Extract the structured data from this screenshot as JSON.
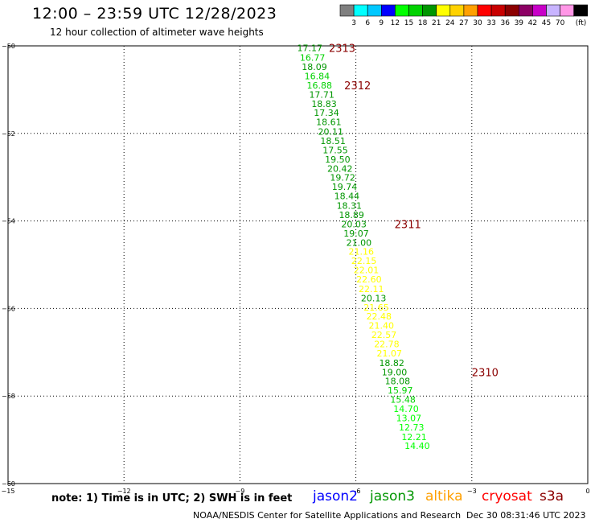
{
  "header": {
    "title": "12:00 – 23:59 UTC 12/28/2023",
    "subtitle": "12 hour collection of altimeter wave heights"
  },
  "colorbar": {
    "unit": "(ft)",
    "bins": [
      {
        "label": "",
        "color": "#7f7f7f"
      },
      {
        "label": "3",
        "color": "#00ffff"
      },
      {
        "label": "6",
        "color": "#00c8ff"
      },
      {
        "label": "9",
        "color": "#0000ff"
      },
      {
        "label": "12",
        "color": "#00ff00"
      },
      {
        "label": "15",
        "color": "#00d200"
      },
      {
        "label": "18",
        "color": "#009600"
      },
      {
        "label": "21",
        "color": "#ffff00"
      },
      {
        "label": "24",
        "color": "#ffd200"
      },
      {
        "label": "27",
        "color": "#ffa000"
      },
      {
        "label": "30",
        "color": "#ff0000"
      },
      {
        "label": "33",
        "color": "#c80000"
      },
      {
        "label": "36",
        "color": "#8b0000"
      },
      {
        "label": "39",
        "color": "#8c0064"
      },
      {
        "label": "42",
        "color": "#c800c8"
      },
      {
        "label": "45",
        "color": "#c8b4ff"
      },
      {
        "label": "70",
        "color": "#ff96e6"
      },
      {
        "label": "",
        "color": "#000000"
      }
    ]
  },
  "chart_data": {
    "type": "scatter",
    "xlim": [
      -15,
      0
    ],
    "ylim": [
      -60,
      -50
    ],
    "x_ticks": [
      -15,
      -12,
      -9,
      -6,
      -3,
      0
    ],
    "y_ticks": [
      -50,
      -52,
      -54,
      -56,
      -58,
      -60
    ],
    "grid": true,
    "points": [
      {
        "x": -7.52,
        "y": -50.05,
        "value": "17.17",
        "color": "#009600"
      },
      {
        "x": -7.45,
        "y": -50.27,
        "value": "16.77",
        "color": "#00d200"
      },
      {
        "x": -7.4,
        "y": -50.48,
        "value": "18.09",
        "color": "#009600"
      },
      {
        "x": -7.33,
        "y": -50.69,
        "value": "16.84",
        "color": "#00d200"
      },
      {
        "x": -7.27,
        "y": -50.9,
        "value": "16.88",
        "color": "#00d200"
      },
      {
        "x": -7.21,
        "y": -51.11,
        "value": "17.71",
        "color": "#009600"
      },
      {
        "x": -7.15,
        "y": -51.32,
        "value": "18.83",
        "color": "#009600"
      },
      {
        "x": -7.09,
        "y": -51.53,
        "value": "17.34",
        "color": "#009600"
      },
      {
        "x": -7.03,
        "y": -51.74,
        "value": "18.61",
        "color": "#009600"
      },
      {
        "x": -6.98,
        "y": -51.96,
        "value": "20.11",
        "color": "#009600"
      },
      {
        "x": -6.92,
        "y": -52.17,
        "value": "18.51",
        "color": "#009600"
      },
      {
        "x": -6.86,
        "y": -52.38,
        "value": "17.55",
        "color": "#009600"
      },
      {
        "x": -6.8,
        "y": -52.59,
        "value": "19.50",
        "color": "#009600"
      },
      {
        "x": -6.74,
        "y": -52.8,
        "value": "20.42",
        "color": "#009600"
      },
      {
        "x": -6.67,
        "y": -53.01,
        "value": "19.72",
        "color": "#009600"
      },
      {
        "x": -6.62,
        "y": -53.22,
        "value": "19.74",
        "color": "#009600"
      },
      {
        "x": -6.56,
        "y": -53.43,
        "value": "18.44",
        "color": "#009600"
      },
      {
        "x": -6.5,
        "y": -53.65,
        "value": "18.31",
        "color": "#009600"
      },
      {
        "x": -6.44,
        "y": -53.86,
        "value": "18.89",
        "color": "#009600"
      },
      {
        "x": -6.38,
        "y": -54.07,
        "value": "20.03",
        "color": "#009600"
      },
      {
        "x": -6.32,
        "y": -54.28,
        "value": "19.07",
        "color": "#009600"
      },
      {
        "x": -6.25,
        "y": -54.49,
        "value": "21.00",
        "color": "#009600"
      },
      {
        "x": -6.19,
        "y": -54.7,
        "value": "21.16",
        "color": "#ffff00"
      },
      {
        "x": -6.12,
        "y": -54.91,
        "value": "22.15",
        "color": "#ffff00"
      },
      {
        "x": -6.06,
        "y": -55.12,
        "value": "22.01",
        "color": "#ffff00"
      },
      {
        "x": -5.99,
        "y": -55.33,
        "value": "22.60",
        "color": "#ffff00"
      },
      {
        "x": -5.93,
        "y": -55.55,
        "value": "22.11",
        "color": "#ffff00"
      },
      {
        "x": -5.87,
        "y": -55.76,
        "value": "20.13",
        "color": "#009600"
      },
      {
        "x": -5.8,
        "y": -55.97,
        "value": "21.65",
        "color": "#ffff00"
      },
      {
        "x": -5.73,
        "y": -56.18,
        "value": "22.48",
        "color": "#ffff00"
      },
      {
        "x": -5.67,
        "y": -56.39,
        "value": "21.40",
        "color": "#ffff00"
      },
      {
        "x": -5.6,
        "y": -56.6,
        "value": "22.57",
        "color": "#ffff00"
      },
      {
        "x": -5.53,
        "y": -56.81,
        "value": "22.78",
        "color": "#ffff00"
      },
      {
        "x": -5.46,
        "y": -57.02,
        "value": "21.07",
        "color": "#ffff00"
      },
      {
        "x": -5.4,
        "y": -57.24,
        "value": "18.82",
        "color": "#009600"
      },
      {
        "x": -5.33,
        "y": -57.45,
        "value": "19.00",
        "color": "#009600"
      },
      {
        "x": -5.25,
        "y": -57.66,
        "value": "18.08",
        "color": "#009600"
      },
      {
        "x": -5.18,
        "y": -57.87,
        "value": "15.97",
        "color": "#00d200"
      },
      {
        "x": -5.11,
        "y": -58.08,
        "value": "15.48",
        "color": "#00d200"
      },
      {
        "x": -5.03,
        "y": -58.29,
        "value": "14.70",
        "color": "#00ff00"
      },
      {
        "x": -4.96,
        "y": -58.5,
        "value": "13.07",
        "color": "#00ff00"
      },
      {
        "x": -4.89,
        "y": -58.71,
        "value": "12.73",
        "color": "#00ff00"
      },
      {
        "x": -4.82,
        "y": -58.93,
        "value": "12.21",
        "color": "#00ff00"
      },
      {
        "x": -4.74,
        "y": -59.14,
        "value": "14.40",
        "color": "#00ff00"
      }
    ],
    "time_labels": [
      {
        "x": -6.7,
        "y": -50.05,
        "text": "2313"
      },
      {
        "x": -6.3,
        "y": -50.9,
        "text": "2312"
      },
      {
        "x": -5.0,
        "y": -54.07,
        "text": "2311"
      },
      {
        "x": -3.0,
        "y": -57.45,
        "text": "2310"
      }
    ],
    "time_label_color": "#8b0000"
  },
  "notes": {
    "note": "note:  1) Time is in UTC;  2) SWH is in feet"
  },
  "legend": [
    {
      "label": "jason2",
      "color": "#0000ff"
    },
    {
      "label": "jason3",
      "color": "#009600"
    },
    {
      "label": "altika",
      "color": "#ffa000"
    },
    {
      "label": "cryosat",
      "color": "#ff0000"
    },
    {
      "label": "s3a",
      "color": "#8b0000"
    }
  ],
  "footer": {
    "credit": "NOAA/NESDIS Center for Satellite Applications and Research",
    "timestamp": "Dec 30 08:31:46 UTC 2023"
  }
}
